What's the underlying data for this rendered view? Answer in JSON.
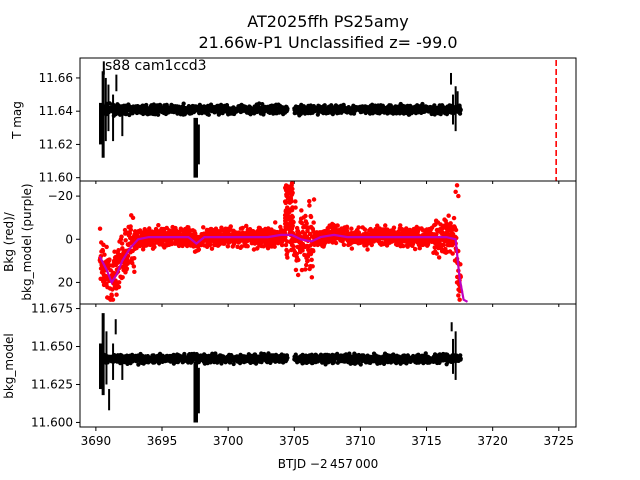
{
  "figure": {
    "title_line1": "AT2025ffh  PS25amy",
    "title_line2": "21.66w-P1 Unclassified z= -99.0",
    "annotation": "s88 cam1ccd3"
  },
  "chart_data": [
    {
      "type": "scatter",
      "panel": "top",
      "ylabel": "T mag",
      "ylim": [
        11.672,
        11.598
      ],
      "y_inverted": true,
      "xlim": [
        3688.8,
        3726.3
      ],
      "yticks": [
        11.6,
        11.62,
        11.64,
        11.66
      ],
      "ytick_labels": [
        "11.60",
        "11.62",
        "11.64",
        "11.66"
      ],
      "series": [
        {
          "color": "#000000",
          "baseline": 11.641,
          "segments": [
            {
              "x_start": 3690.4,
              "x_end": 3704.5
            },
            {
              "x_start": 3705.0,
              "x_end": 3717.6
            }
          ],
          "features": [
            {
              "x": 3690.6,
              "y_min": 11.605,
              "y_max": 11.668,
              "label": "early scatter"
            },
            {
              "x": 3697.6,
              "y_min": 11.6,
              "y_max": 11.638,
              "label": "spike"
            },
            {
              "x": 3717.1,
              "y_min": 11.63,
              "y_max": 11.66,
              "label": "late scatter"
            }
          ]
        }
      ],
      "vline": {
        "x": 3724.8,
        "color": "#ff0000",
        "style": "dashed"
      }
    },
    {
      "type": "scatter",
      "panel": "middle",
      "ylabel_line1": "Bkg (red)/",
      "ylabel_line2": "bkg_model (purple)",
      "ylim": [
        -27,
        30
      ],
      "yticks": [
        20,
        0,
        -20
      ],
      "ytick_labels": [
        "20",
        "0",
        "−20"
      ],
      "series": [
        {
          "color": "#ff0000",
          "kind": "Bkg"
        },
        {
          "color": "#bf00bf",
          "kind": "bkg_model"
        }
      ],
      "model_curve": [
        [
          3690.3,
          8
        ],
        [
          3690.8,
          14
        ],
        [
          3691.2,
          20
        ],
        [
          3691.6,
          16
        ],
        [
          3692.0,
          10
        ],
        [
          3692.6,
          4
        ],
        [
          3693.2,
          0
        ],
        [
          3694.0,
          -1
        ],
        [
          3695.5,
          -1
        ],
        [
          3697.0,
          -1
        ],
        [
          3697.6,
          2
        ],
        [
          3698.2,
          -1
        ],
        [
          3699.5,
          -1
        ],
        [
          3701.5,
          -1
        ],
        [
          3703.0,
          -1
        ],
        [
          3704.0,
          -2
        ],
        [
          3704.8,
          -2
        ],
        [
          3705.5,
          0
        ],
        [
          3706.3,
          1
        ],
        [
          3707.0,
          -1
        ],
        [
          3708.0,
          -2
        ],
        [
          3709.0,
          -1
        ],
        [
          3711.0,
          -1
        ],
        [
          3713.0,
          -1
        ],
        [
          3715.0,
          -1
        ],
        [
          3716.5,
          -1
        ],
        [
          3717.2,
          0
        ],
        [
          3717.5,
          18
        ],
        [
          3717.8,
          28
        ],
        [
          3718.1,
          29
        ]
      ]
    },
    {
      "type": "scatter",
      "panel": "bottom",
      "ylabel": "bkg_model",
      "xlabel": "BTJD −2 457 000",
      "ylim": [
        11.678,
        11.597
      ],
      "y_inverted": true,
      "yticks": [
        11.6,
        11.625,
        11.65,
        11.675
      ],
      "ytick_labels": [
        "11.600",
        "11.625",
        "11.650",
        "11.675"
      ],
      "xticks": [
        3690,
        3695,
        3700,
        3705,
        3710,
        3715,
        3720,
        3725
      ],
      "xtick_labels": [
        "3690",
        "3695",
        "3700",
        "3705",
        "3710",
        "3715",
        "3720",
        "3725"
      ],
      "series": [
        {
          "color": "#000000",
          "baseline": 11.642
        }
      ]
    }
  ]
}
